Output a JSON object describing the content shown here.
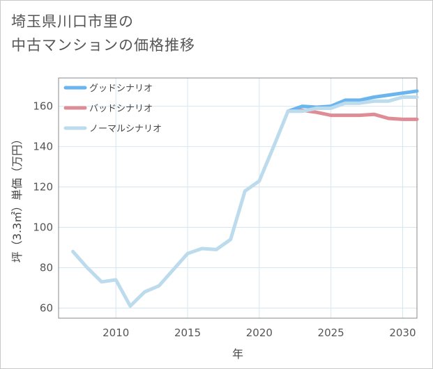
{
  "chart_data": {
    "type": "line",
    "title_lines": [
      "埼玉県川口市里の",
      "中古マンションの価格推移"
    ],
    "xlabel": "年",
    "ylabel": "坪（3.3㎡）単価（万円）",
    "xlim": [
      2006,
      2031
    ],
    "ylim": [
      55,
      174
    ],
    "x_ticks": [
      2010,
      2015,
      2020,
      2025,
      2030
    ],
    "y_ticks": [
      60,
      80,
      100,
      120,
      140,
      160
    ],
    "grid": true,
    "legend_position": "top-left",
    "series": [
      {
        "name": "グッドシナリオ",
        "color": "#6bb5ef",
        "x": [
          2022,
          2023,
          2024,
          2025,
          2026,
          2027,
          2028,
          2029,
          2030,
          2031
        ],
        "y": [
          157.5,
          160,
          159.5,
          160,
          163,
          163,
          164.5,
          165.5,
          166.5,
          167.5
        ]
      },
      {
        "name": "バッドシナリオ",
        "color": "#de8c95",
        "x": [
          2022,
          2023,
          2024,
          2025,
          2026,
          2027,
          2028,
          2029,
          2030,
          2031
        ],
        "y": [
          157.5,
          158,
          157,
          155.5,
          155.5,
          155.5,
          156,
          154,
          153.5,
          153.5
        ]
      },
      {
        "name": "ノーマルシナリオ",
        "color": "#bcdcee",
        "x": [
          2007,
          2008,
          2009,
          2010,
          2011,
          2012,
          2013,
          2014,
          2015,
          2016,
          2017,
          2018,
          2019,
          2020,
          2021,
          2022,
          2023,
          2024,
          2025,
          2026,
          2027,
          2028,
          2029,
          2030,
          2031
        ],
        "y": [
          88,
          80,
          73,
          74,
          61,
          68,
          71,
          79,
          87,
          89.5,
          89,
          94,
          118,
          123,
          140,
          157.5,
          157.5,
          159,
          159,
          161.5,
          161.5,
          162.5,
          162.5,
          164.5,
          164.5
        ]
      }
    ]
  }
}
